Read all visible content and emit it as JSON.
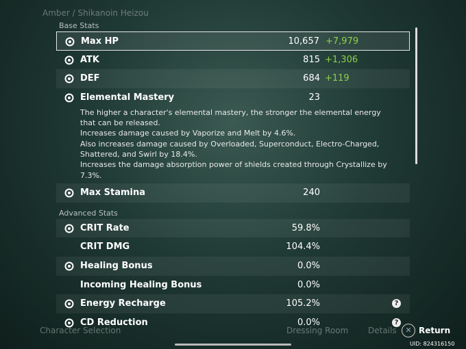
{
  "header": {
    "breadcrumb": "Amber / Shikanoin Heizou"
  },
  "base_stats": {
    "title": "Base Stats",
    "rows": [
      {
        "label": "Max HP",
        "value": "10,657",
        "bonus": "+7,979"
      },
      {
        "label": "ATK",
        "value": "815",
        "bonus": "+1,306"
      },
      {
        "label": "DEF",
        "value": "684",
        "bonus": "+119"
      },
      {
        "label": "Elemental Mastery",
        "value": "23",
        "description": [
          "The higher a character's elemental mastery, the stronger the elemental energy that can be released.",
          "Increases damage caused by Vaporize and Melt by 4.6%.",
          "Also increases damage caused by Overloaded, Superconduct, Electro-Charged, Shattered, and Swirl by 18.4%.",
          "Increases the damage absorption power of shields created through Crystallize by 7.3%."
        ]
      },
      {
        "label": "Max Stamina",
        "value": "240"
      }
    ]
  },
  "advanced_stats": {
    "title": "Advanced Stats",
    "rows": [
      {
        "label": "CRIT Rate",
        "value": "59.8%"
      },
      {
        "label": "CRIT DMG",
        "value": "104.4%"
      },
      {
        "label": "Healing Bonus",
        "value": "0.0%"
      },
      {
        "label": "Incoming Healing Bonus",
        "value": "0.0%"
      },
      {
        "label": "Energy Recharge",
        "value": "105.2%"
      },
      {
        "label": "CD Reduction",
        "value": "0.0%"
      }
    ]
  },
  "footer": {
    "character_selection": "Character Selection",
    "dressing_room": "Dressing Room",
    "details": "Details",
    "return": "Return",
    "uid": "UID: 824316150"
  }
}
